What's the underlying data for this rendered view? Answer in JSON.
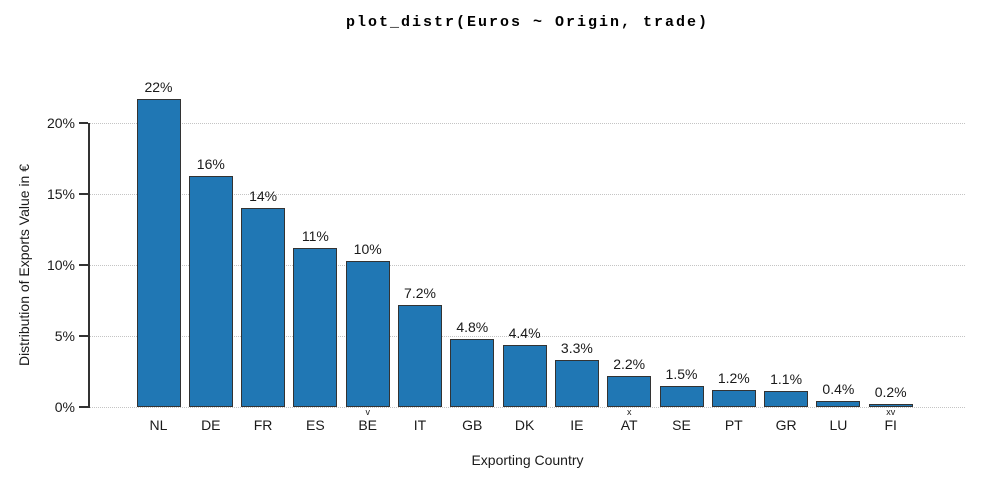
{
  "chart_data": {
    "type": "bar",
    "title": "plot_distr(Euros ~ Origin, trade)",
    "xlabel": "Exporting Country",
    "ylabel": "Distribution of Exports Value in €",
    "categories": [
      "NL",
      "DE",
      "FR",
      "ES",
      "BE",
      "IT",
      "GB",
      "DK",
      "IE",
      "AT",
      "SE",
      "PT",
      "GR",
      "LU",
      "FI"
    ],
    "values": [
      21.7,
      16.3,
      14.0,
      11.2,
      10.3,
      7.2,
      4.8,
      4.4,
      3.3,
      2.2,
      1.5,
      1.2,
      1.1,
      0.4,
      0.2
    ],
    "bar_labels": [
      "22%",
      "16%",
      "14%",
      "11%",
      "10%",
      "7.2%",
      "4.8%",
      "4.4%",
      "3.3%",
      "2.2%",
      "1.5%",
      "1.2%",
      "1.1%",
      "0.4%",
      "0.2%"
    ],
    "category_markers": [
      "",
      "",
      "",
      "",
      "v",
      "",
      "",
      "",
      "",
      "x",
      "",
      "",
      "",
      "",
      "xv"
    ],
    "y_tick_labels": [
      "0%",
      "5%",
      "10%",
      "15%",
      "20%"
    ],
    "y_tick_values": [
      0,
      5,
      10,
      15,
      20
    ],
    "ylim": [
      0,
      22.5
    ],
    "grid": "horizontal-dotted",
    "legend": "none",
    "bar_fill_color": "#2077b4",
    "bar_edge_color": "#333333",
    "axis_color": "#333333",
    "grid_color": "#c4c4c4",
    "background_color": "#ffffff"
  }
}
